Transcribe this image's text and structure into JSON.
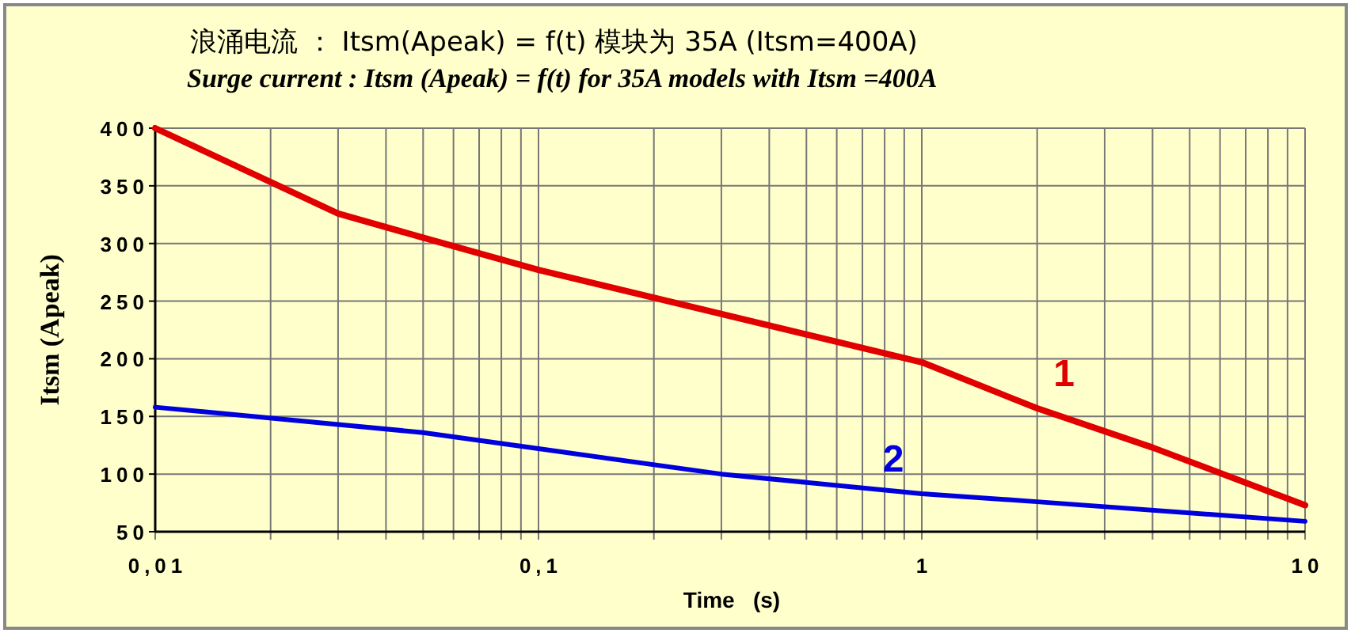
{
  "chart_data": {
    "type": "line",
    "title": "浪涌电流 ： Itsm(Apeak) = f(t) 模块为 35A (Itsm=400A)",
    "subtitle": "Surge current  : Itsm (Apeak) = f(t)  for 35A models with Itsm =400A",
    "xlabel": "Time   (s)",
    "ylabel": "Itsm (Apeak)",
    "log": "x",
    "grid": true,
    "xlim": [
      0.01,
      10
    ],
    "ylim": [
      50,
      400
    ],
    "xticks": [
      {
        "value": 0.01,
        "label": "0,01"
      },
      {
        "value": 0.1,
        "label": "0,1"
      },
      1,
      10
    ],
    "yticks": [
      50,
      100,
      150,
      200,
      250,
      300,
      350,
      400
    ],
    "series": [
      {
        "name": "1",
        "color": "#e00000",
        "x": [
          0.01,
          0.03,
          0.05,
          0.1,
          1,
          2,
          4,
          10
        ],
        "values": [
          400,
          326,
          305,
          277,
          197,
          157,
          123,
          73
        ]
      },
      {
        "name": "2",
        "color": "#0000dd",
        "x": [
          0.01,
          0.03,
          0.05,
          0.1,
          0.3,
          1,
          2,
          10
        ],
        "values": [
          158,
          143,
          136,
          122,
          100,
          83,
          76,
          59
        ]
      }
    ]
  }
}
